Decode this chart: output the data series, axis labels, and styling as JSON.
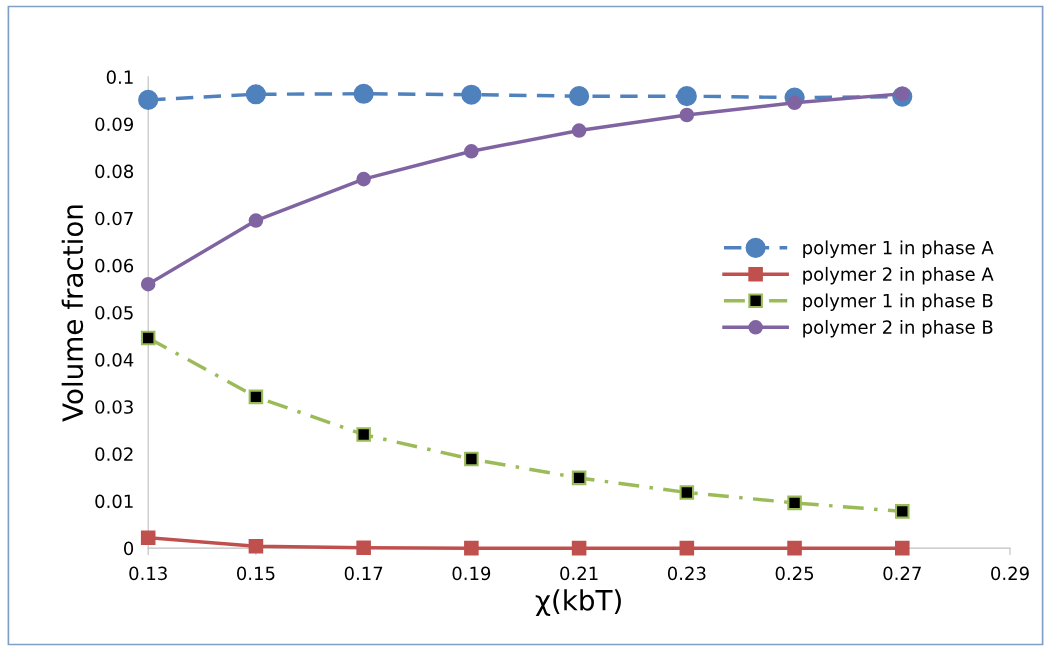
{
  "chart_data": {
    "type": "line",
    "xlabel": "χ(kbT)",
    "ylabel": "Volume fraction",
    "x": [
      0.13,
      0.15,
      0.17,
      0.19,
      0.21,
      0.23,
      0.25,
      0.27
    ],
    "xlim": [
      0.13,
      0.29
    ],
    "xticks": [
      0.13,
      0.15,
      0.17,
      0.19,
      0.21,
      0.23,
      0.25,
      0.27,
      0.29
    ],
    "ylim": [
      0,
      0.1
    ],
    "yticks": [
      0,
      0.01,
      0.02,
      0.03,
      0.04,
      0.05,
      0.06,
      0.07,
      0.08,
      0.09,
      0.1
    ],
    "grid": false,
    "legend": "right",
    "series": [
      {
        "name": "polymer 1 in phase A",
        "color": "#4f81bd",
        "marker": "circle",
        "line_style": "dashed",
        "values": [
          0.0951,
          0.0963,
          0.0964,
          0.0962,
          0.0959,
          0.0959,
          0.0956,
          0.0958
        ]
      },
      {
        "name": "polymer 2 in phase A",
        "color": "#c0504d",
        "marker": "square",
        "line_style": "solid",
        "values": [
          0.0022,
          0.0004,
          0.0001,
          0,
          0,
          0,
          0,
          0
        ]
      },
      {
        "name": "polymer 1 in phase B",
        "color": "#9bbb59",
        "marker": "square",
        "line_style": "dashdot",
        "values": [
          0.0446,
          0.0321,
          0.0241,
          0.0189,
          0.0149,
          0.0118,
          0.0096,
          0.0078
        ]
      },
      {
        "name": "polymer 2 in phase B",
        "color": "#8064a2",
        "marker": "circle",
        "line_style": "solid",
        "values": [
          0.056,
          0.0695,
          0.0783,
          0.0842,
          0.0886,
          0.0919,
          0.0945,
          0.0964
        ]
      }
    ]
  }
}
